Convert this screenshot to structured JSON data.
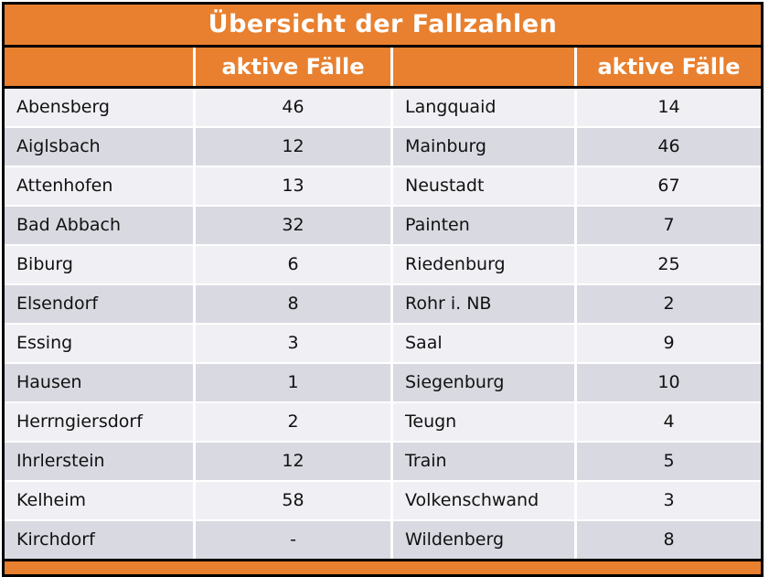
{
  "title": "Übersicht der Fallzahlen",
  "column_header": "aktive Fälle",
  "colors": {
    "accent_orange": "#E8802F",
    "row_light": "#EFEFF4",
    "row_dark": "#D8D9E1",
    "border": "#000000",
    "header_text": "#FFFFFF",
    "body_text": "#111111"
  },
  "rows": [
    {
      "left_name": "Abensberg",
      "left_value": "46",
      "right_name": "Langquaid",
      "right_value": "14"
    },
    {
      "left_name": "Aiglsbach",
      "left_value": "12",
      "right_name": "Mainburg",
      "right_value": "46"
    },
    {
      "left_name": "Attenhofen",
      "left_value": "13",
      "right_name": "Neustadt",
      "right_value": "67"
    },
    {
      "left_name": "Bad Abbach",
      "left_value": "32",
      "right_name": "Painten",
      "right_value": "7"
    },
    {
      "left_name": "Biburg",
      "left_value": "6",
      "right_name": "Riedenburg",
      "right_value": "25"
    },
    {
      "left_name": "Elsendorf",
      "left_value": "8",
      "right_name": "Rohr i. NB",
      "right_value": "2"
    },
    {
      "left_name": "Essing",
      "left_value": "3",
      "right_name": "Saal",
      "right_value": "9"
    },
    {
      "left_name": "Hausen",
      "left_value": "1",
      "right_name": "Siegenburg",
      "right_value": "10"
    },
    {
      "left_name": "Herrngiersdorf",
      "left_value": "2",
      "right_name": "Teugn",
      "right_value": "4"
    },
    {
      "left_name": "Ihrlerstein",
      "left_value": "12",
      "right_name": "Train",
      "right_value": "5"
    },
    {
      "left_name": "Kelheim",
      "left_value": "58",
      "right_name": "Volkenschwand",
      "right_value": "3"
    },
    {
      "left_name": "Kirchdorf",
      "left_value": "-",
      "right_name": "Wildenberg",
      "right_value": "8"
    }
  ],
  "chart_data": {
    "type": "table",
    "title": "Übersicht der Fallzahlen",
    "columns": [
      "",
      "aktive Fälle",
      "",
      "aktive Fälle"
    ],
    "rows": [
      [
        "Abensberg",
        46,
        "Langquaid",
        14
      ],
      [
        "Aiglsbach",
        12,
        "Mainburg",
        46
      ],
      [
        "Attenhofen",
        13,
        "Neustadt",
        67
      ],
      [
        "Bad Abbach",
        32,
        "Painten",
        7
      ],
      [
        "Biburg",
        6,
        "Riedenburg",
        25
      ],
      [
        "Elsendorf",
        8,
        "Rohr i. NB",
        2
      ],
      [
        "Essing",
        3,
        "Saal",
        9
      ],
      [
        "Hausen",
        1,
        "Siegenburg",
        10
      ],
      [
        "Herrngiersdorf",
        2,
        "Teugn",
        4
      ],
      [
        "Ihrlerstein",
        12,
        "Train",
        5
      ],
      [
        "Kelheim",
        58,
        "Volkenschwand",
        3
      ],
      [
        "Kirchdorf",
        "-",
        "Wildenberg",
        8
      ]
    ]
  }
}
